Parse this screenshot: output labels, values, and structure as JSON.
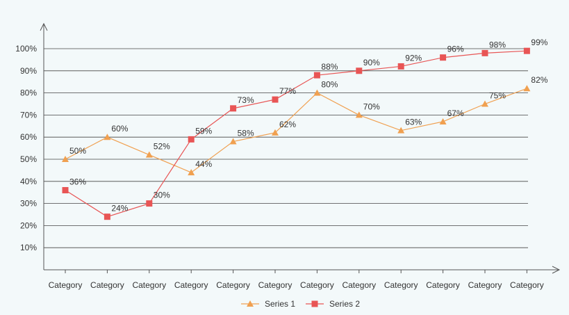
{
  "chart_data": {
    "type": "line",
    "title": "",
    "xlabel": "",
    "ylabel": "",
    "categories": [
      "Category",
      "Category",
      "Category",
      "Category",
      "Category",
      "Category",
      "Category",
      "Category",
      "Category",
      "Category",
      "Category",
      "Category"
    ],
    "y_ticks": [
      "10%",
      "20%",
      "30%",
      "40%",
      "50%",
      "60%",
      "70%",
      "80%",
      "90%",
      "100%"
    ],
    "ylim": [
      0,
      100
    ],
    "grid": true,
    "legend_position": "bottom",
    "series": [
      {
        "name": "Series 1",
        "marker": "triangle",
        "color": "#f0a050",
        "values": [
          50,
          60,
          52,
          44,
          58,
          62,
          80,
          70,
          63,
          67,
          75,
          82
        ],
        "labels": [
          "50%",
          "60%",
          "52%",
          "44%",
          "58%",
          "62%",
          "80%",
          "70%",
          "63%",
          "67%",
          "75%",
          "82%"
        ]
      },
      {
        "name": "Series 2",
        "marker": "square",
        "color": "#e85555",
        "values": [
          36,
          24,
          30,
          59,
          73,
          77,
          88,
          90,
          92,
          96,
          98,
          99
        ],
        "labels": [
          "36%",
          "24%",
          "30%",
          "59%",
          "73%",
          "77%",
          "88%",
          "90%",
          "92%",
          "96%",
          "98%",
          "99%"
        ]
      }
    ]
  }
}
